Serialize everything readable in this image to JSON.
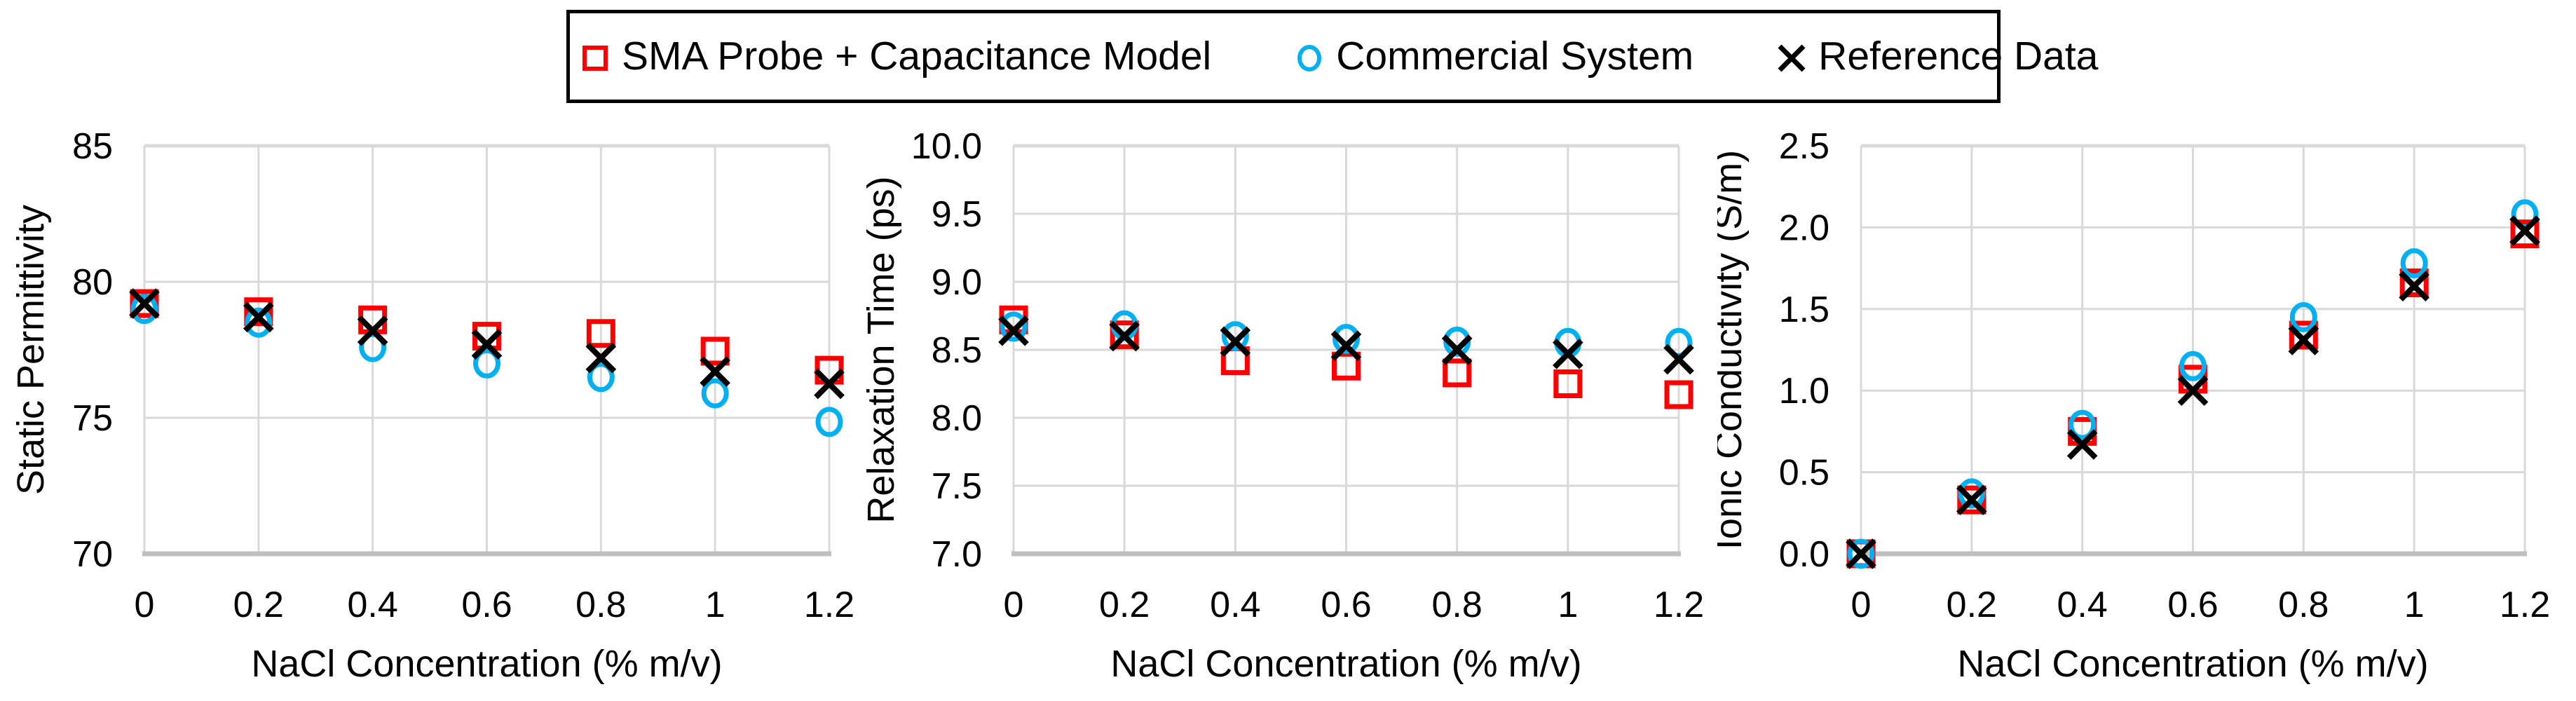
{
  "figure": {
    "background": "#FFFFFF"
  },
  "legend": {
    "items": [
      {
        "label": "SMA Probe + Capacitance Model",
        "marker": "square",
        "color": "#FF0000"
      },
      {
        "label": "Commercial System",
        "marker": "circle",
        "color": "#00B0F0"
      },
      {
        "label": "Reference Data",
        "marker": "x",
        "color": "#000000"
      }
    ]
  },
  "colors": {
    "grid": "#D9D9D9",
    "axis_line": "#BFBFBF",
    "text": "#000000",
    "sma_red": "#FF0000",
    "commercial_blue": "#00B0F0",
    "reference_black": "#000000",
    "background": "#FFFFFF"
  },
  "chart_data": [
    {
      "type": "scatter",
      "title": "",
      "xlabel": "NaCl Concentration (% m/v)",
      "ylabel": "Static Permittivity",
      "x": [
        0,
        0.2,
        0.4,
        0.6,
        0.8,
        1,
        1.2
      ],
      "xtick_labels": [
        "0",
        "0.2",
        "0.4",
        "0.6",
        "0.8",
        "1",
        "1.2"
      ],
      "xlim": [
        0,
        1.2
      ],
      "ylim": [
        70,
        85
      ],
      "yticks": [
        85,
        80,
        75,
        70
      ],
      "ytick_labels": [
        "85",
        "80",
        "75",
        "70"
      ],
      "grid": true,
      "legend_position": "top",
      "series": [
        {
          "name": "SMA Probe + Capacitance Model",
          "marker": "square",
          "color": "#FF0000",
          "values": [
            79.2,
            78.9,
            78.6,
            78.0,
            78.1,
            77.45,
            76.75
          ]
        },
        {
          "name": "Commercial System",
          "marker": "circle",
          "color": "#00B0F0",
          "values": [
            79.0,
            78.5,
            77.6,
            77.0,
            76.5,
            75.9,
            74.85
          ]
        },
        {
          "name": "Reference Data",
          "marker": "x",
          "color": "#000000",
          "values": [
            79.2,
            78.7,
            78.2,
            77.7,
            77.2,
            76.7,
            76.25
          ]
        }
      ]
    },
    {
      "type": "scatter",
      "title": "",
      "xlabel": "NaCl Concentration (% m/v)",
      "ylabel": "Relaxation Time (ps)",
      "x": [
        0,
        0.2,
        0.4,
        0.6,
        0.8,
        1,
        1.2
      ],
      "xtick_labels": [
        "0",
        "0.2",
        "0.4",
        "0.6",
        "0.8",
        "1",
        "1.2"
      ],
      "xlim": [
        0,
        1.2
      ],
      "ylim": [
        7.0,
        10.0
      ],
      "yticks": [
        10.0,
        9.5,
        9.0,
        8.5,
        8.0,
        7.5,
        7.0
      ],
      "ytick_labels": [
        "10.0",
        "9.5",
        "9.0",
        "8.5",
        "8.0",
        "7.5",
        "7.0"
      ],
      "grid": true,
      "legend_position": "top",
      "series": [
        {
          "name": "SMA Probe + Capacitance Model",
          "marker": "square",
          "color": "#FF0000",
          "values": [
            8.72,
            8.61,
            8.42,
            8.38,
            8.33,
            8.25,
            8.17
          ]
        },
        {
          "name": "Commercial System",
          "marker": "circle",
          "color": "#00B0F0",
          "values": [
            8.67,
            8.68,
            8.6,
            8.58,
            8.56,
            8.55,
            8.55
          ]
        },
        {
          "name": "Reference Data",
          "marker": "x",
          "color": "#000000",
          "values": [
            8.64,
            8.6,
            8.56,
            8.53,
            8.5,
            8.47,
            8.43
          ]
        }
      ]
    },
    {
      "type": "scatter",
      "title": "",
      "xlabel": "NaCl Concentration (% m/v)",
      "ylabel": "Ionic Conductivity (S/m)",
      "x": [
        0,
        0.2,
        0.4,
        0.6,
        0.8,
        1,
        1.2
      ],
      "xtick_labels": [
        "0",
        "0.2",
        "0.4",
        "0.6",
        "0.8",
        "1",
        "1.2"
      ],
      "xlim": [
        0,
        1.2
      ],
      "ylim": [
        0.0,
        2.5
      ],
      "yticks": [
        2.5,
        2.0,
        1.5,
        1.0,
        0.5,
        0.0
      ],
      "ytick_labels": [
        "2.5",
        "2.0",
        "1.5",
        "1.0",
        "0.5",
        "0.0"
      ],
      "grid": true,
      "legend_position": "top",
      "series": [
        {
          "name": "SMA Probe + Capacitance Model",
          "marker": "square",
          "color": "#FF0000",
          "values": [
            0.0,
            0.33,
            0.75,
            1.07,
            1.34,
            1.66,
            1.96
          ]
        },
        {
          "name": "Commercial System",
          "marker": "circle",
          "color": "#00B0F0",
          "values": [
            0.0,
            0.37,
            0.79,
            1.15,
            1.45,
            1.78,
            2.08
          ]
        },
        {
          "name": "Reference Data",
          "marker": "x",
          "color": "#000000",
          "values": [
            0.0,
            0.33,
            0.67,
            1.0,
            1.31,
            1.64,
            1.98
          ]
        }
      ]
    }
  ]
}
